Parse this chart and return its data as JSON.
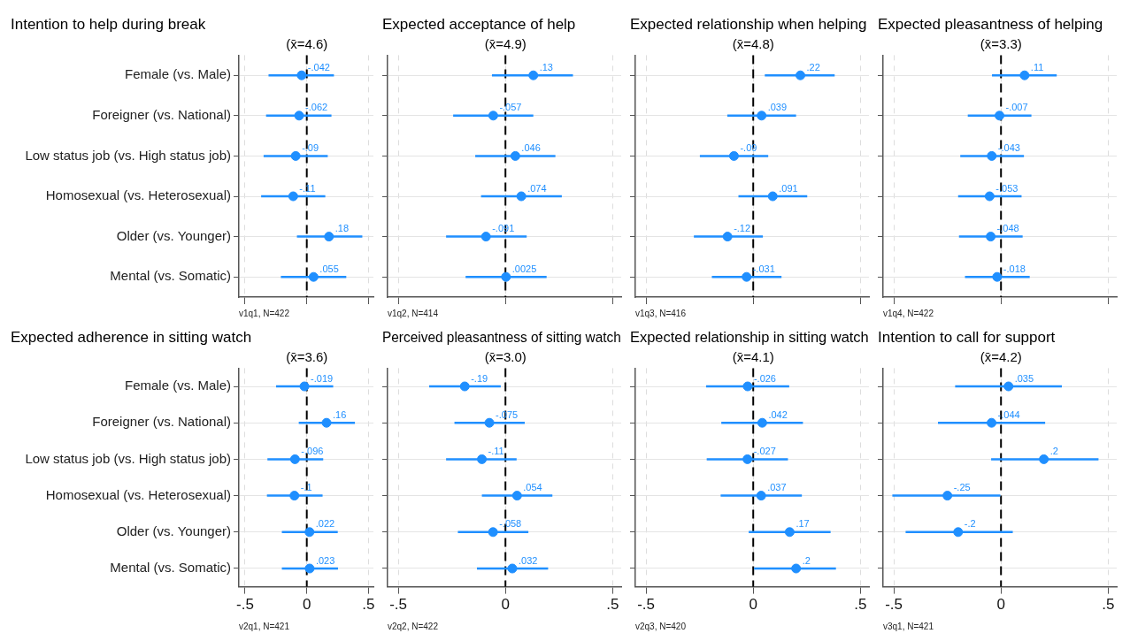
{
  "chart_data": [
    {
      "type": "scatter",
      "orientation": "horizontal",
      "title": "Intention to help during break",
      "categories": [
        "Female (vs. Male)",
        "Foreigner (vs. National)",
        "Low status job (vs. High status job)",
        "Homosexual (vs. Heterosexual)",
        "Older (vs. Younger)",
        "Mental (vs. Somatic)"
      ],
      "color": "#1f8fff",
      "marker": "circle",
      "grid": true,
      "tick_labels": "y",
      "xlim": [
        -0.55,
        0.54
      ],
      "xticks": [
        {
          "value": -0.5,
          "label": null
        },
        {
          "value": 0,
          "label": null
        },
        {
          "value": 0.5,
          "label": null
        }
      ],
      "values": [
        -0.042,
        -0.062,
        -0.09,
        -0.11,
        0.18,
        0.055
      ],
      "errors": [
        [
          -0.31,
          0.22
        ],
        [
          -0.33,
          0.2
        ],
        [
          -0.35,
          0.17
        ],
        [
          -0.37,
          0.15
        ],
        [
          -0.08,
          0.45
        ],
        [
          -0.21,
          0.32
        ]
      ],
      "value_labels": [
        "-.042",
        "-.062",
        "-.09",
        "-.11",
        ".18",
        ".055"
      ],
      "ref_lines": [
        {
          "axis": "x",
          "value": 0,
          "color": "#000000",
          "line_style": "dashed"
        }
      ],
      "annotations": [
        "(x̄=4.6)",
        "v1q1, N=422"
      ]
    },
    {
      "type": "scatter",
      "orientation": "horizontal",
      "title": "Expected acceptance of help",
      "categories": [
        null,
        null,
        null,
        null,
        null,
        null
      ],
      "color": "#1f8fff",
      "marker": "circle",
      "grid": true,
      "tick_labels": false,
      "xlim": [
        -0.55,
        0.54
      ],
      "xticks": [
        {
          "value": -0.5,
          "label": null
        },
        {
          "value": 0,
          "label": null
        },
        {
          "value": 0.5,
          "label": null
        }
      ],
      "values": [
        0.13,
        -0.057,
        0.046,
        0.074,
        -0.091,
        0.0025
      ],
      "errors": [
        [
          -0.063,
          0.315
        ],
        [
          -0.244,
          0.13
        ],
        [
          -0.141,
          0.233
        ],
        [
          -0.114,
          0.263
        ],
        [
          -0.277,
          0.099
        ],
        [
          -0.186,
          0.192
        ]
      ],
      "value_labels": [
        ".13",
        "-.057",
        ".046",
        ".074",
        "-.091",
        ".0025"
      ],
      "ref_lines": [
        {
          "axis": "x",
          "value": 0,
          "color": "#000000",
          "line_style": "dashed"
        }
      ],
      "annotations": [
        "(x̄=4.9)",
        "v1q2, N=414"
      ]
    },
    {
      "type": "scatter",
      "orientation": "horizontal",
      "title": "Expected relationship when helping",
      "categories": [
        null,
        null,
        null,
        null,
        null,
        null
      ],
      "color": "#1f8fff",
      "marker": "circle",
      "grid": true,
      "tick_labels": false,
      "xlim": [
        -0.55,
        0.54
      ],
      "xticks": [
        {
          "value": -0.5,
          "label": null
        },
        {
          "value": 0,
          "label": null
        },
        {
          "value": 0.5,
          "label": null
        }
      ],
      "values": [
        0.22,
        0.039,
        -0.09,
        0.091,
        -0.12,
        -0.031
      ],
      "errors": [
        [
          0.054,
          0.38
        ],
        [
          -0.121,
          0.2
        ],
        [
          -0.249,
          0.07
        ],
        [
          -0.069,
          0.252
        ],
        [
          -0.277,
          0.045
        ],
        [
          -0.193,
          0.132
        ]
      ],
      "value_labels": [
        ".22",
        ".039",
        "-.09",
        ".091",
        "-.12",
        "-.031"
      ],
      "ref_lines": [
        {
          "axis": "x",
          "value": 0,
          "color": "#000000",
          "line_style": "dashed"
        }
      ],
      "annotations": [
        "(x̄=4.8)",
        "v1q3, N=416"
      ]
    },
    {
      "type": "scatter",
      "orientation": "horizontal",
      "title": "Expected pleasantness of helping",
      "categories": [
        null,
        null,
        null,
        null,
        null,
        null
      ],
      "color": "#1f8fff",
      "marker": "circle",
      "grid": true,
      "tick_labels": false,
      "xlim": [
        -0.55,
        0.54
      ],
      "xticks": [
        {
          "value": -0.5,
          "label": null
        },
        {
          "value": 0,
          "label": null
        },
        {
          "value": 0.5,
          "label": null
        }
      ],
      "values": [
        0.11,
        -0.007,
        -0.043,
        -0.053,
        -0.048,
        -0.018
      ],
      "errors": [
        [
          -0.042,
          0.26
        ],
        [
          -0.155,
          0.142
        ],
        [
          -0.19,
          0.107
        ],
        [
          -0.2,
          0.096
        ],
        [
          -0.196,
          0.101
        ],
        [
          -0.168,
          0.134
        ]
      ],
      "value_labels": [
        ".11",
        "-.007",
        "-.043",
        "-.053",
        "-.048",
        "-.018"
      ],
      "ref_lines": [
        {
          "axis": "x",
          "value": 0,
          "color": "#000000",
          "line_style": "dashed"
        }
      ],
      "annotations": [
        "(x̄=3.3)",
        "v1q4, N=422"
      ]
    },
    {
      "type": "scatter",
      "orientation": "horizontal",
      "title": "Expected adherence in sitting watch",
      "categories": [
        "Female (vs. Male)",
        "Foreigner (vs. National)",
        "Low status job (vs. High status job)",
        "Homosexual (vs. Heterosexual)",
        "Older (vs. Younger)",
        "Mental (vs. Somatic)"
      ],
      "color": "#1f8fff",
      "marker": "circle",
      "grid": true,
      "xlim": [
        -0.55,
        0.54
      ],
      "xticks": [
        {
          "value": -0.5,
          "label": "-.5"
        },
        {
          "value": 0,
          "label": "0"
        },
        {
          "value": 0.5,
          "label": ".5"
        }
      ],
      "values": [
        -0.019,
        0.16,
        -0.096,
        -0.1,
        0.022,
        0.023
      ],
      "errors": [
        [
          -0.249,
          0.214
        ],
        [
          -0.065,
          0.39
        ],
        [
          -0.319,
          0.133
        ],
        [
          -0.323,
          0.128
        ],
        [
          -0.202,
          0.251
        ],
        [
          -0.202,
          0.253
        ]
      ],
      "value_labels": [
        "-.019",
        ".16",
        "-.096",
        "-.1",
        ".022",
        ".023"
      ],
      "ref_lines": [
        {
          "axis": "x",
          "value": 0,
          "color": "#000000",
          "line_style": "dashed"
        }
      ],
      "annotations": [
        "(x̄=3.6)",
        "v2q1, N=421"
      ]
    },
    {
      "type": "scatter",
      "orientation": "horizontal",
      "title": "Perceived pleasantness of sitting watch",
      "categories": [
        null,
        null,
        null,
        null,
        null,
        null
      ],
      "color": "#1f8fff",
      "marker": "circle",
      "grid": true,
      "tick_labels": "x",
      "xlim": [
        -0.55,
        0.54
      ],
      "xticks": [
        {
          "value": -0.5,
          "label": "-.5"
        },
        {
          "value": 0,
          "label": "0"
        },
        {
          "value": 0.5,
          "label": ".5"
        }
      ],
      "values": [
        -0.19,
        -0.075,
        -0.11,
        0.054,
        -0.058,
        0.032
      ],
      "errors": [
        [
          -0.356,
          -0.022
        ],
        [
          -0.238,
          0.09
        ],
        [
          -0.277,
          0.052
        ],
        [
          -0.11,
          0.219
        ],
        [
          -0.222,
          0.107
        ],
        [
          -0.133,
          0.199
        ]
      ],
      "value_labels": [
        "-.19",
        "-.075",
        "-.11",
        ".054",
        "-.058",
        ".032"
      ],
      "ref_lines": [
        {
          "axis": "x",
          "value": 0,
          "color": "#000000",
          "line_style": "dashed"
        }
      ],
      "annotations": [
        "(x̄=3.0)",
        "v2q2, N=422"
      ]
    },
    {
      "type": "scatter",
      "orientation": "horizontal",
      "title": "Expected relationship in sitting watch",
      "categories": [
        null,
        null,
        null,
        null,
        null,
        null
      ],
      "color": "#1f8fff",
      "marker": "circle",
      "grid": true,
      "tick_labels": "x",
      "xlim": [
        -0.55,
        0.54
      ],
      "xticks": [
        {
          "value": -0.5,
          "label": "-.5"
        },
        {
          "value": 0,
          "label": "0"
        },
        {
          "value": 0.5,
          "label": ".5"
        }
      ],
      "values": [
        -0.026,
        0.042,
        -0.027,
        0.037,
        0.17,
        0.2
      ],
      "errors": [
        [
          -0.22,
          0.168
        ],
        [
          -0.149,
          0.232
        ],
        [
          -0.217,
          0.162
        ],
        [
          -0.152,
          0.227
        ],
        [
          -0.021,
          0.361
        ],
        [
          0.004,
          0.386
        ]
      ],
      "value_labels": [
        "-.026",
        ".042",
        "-.027",
        ".037",
        ".17",
        ".2"
      ],
      "ref_lines": [
        {
          "axis": "x",
          "value": 0,
          "color": "#000000",
          "line_style": "dashed"
        }
      ],
      "annotations": [
        "(x̄=4.1)",
        "v2q3, N=420"
      ]
    },
    {
      "type": "scatter",
      "orientation": "horizontal",
      "title": "Intention to call for support",
      "categories": [
        null,
        null,
        null,
        null,
        null,
        null
      ],
      "color": "#1f8fff",
      "marker": "circle",
      "grid": true,
      "tick_labels": "x",
      "xlim": [
        -0.55,
        0.54
      ],
      "xticks": [
        {
          "value": -0.5,
          "label": "-.5"
        },
        {
          "value": 0,
          "label": "0"
        },
        {
          "value": 0.5,
          "label": ".5"
        }
      ],
      "values": [
        0.035,
        -0.044,
        0.2,
        -0.25,
        -0.2,
        null
      ],
      "errors": [
        [
          -0.214,
          0.284
        ],
        [
          -0.294,
          0.206
        ],
        [
          -0.046,
          0.455
        ],
        [
          -0.507,
          -0.003
        ],
        [
          -0.445,
          0.055
        ],
        null
      ],
      "value_labels": [
        ".035",
        "-.044",
        ".2",
        "-.25",
        "-.2",
        null
      ],
      "ref_lines": [
        {
          "axis": "x",
          "value": 0,
          "color": "#000000",
          "line_style": "dashed"
        }
      ],
      "annotations": [
        "(x̄=4.2)",
        "v3q1, N=421"
      ]
    }
  ]
}
